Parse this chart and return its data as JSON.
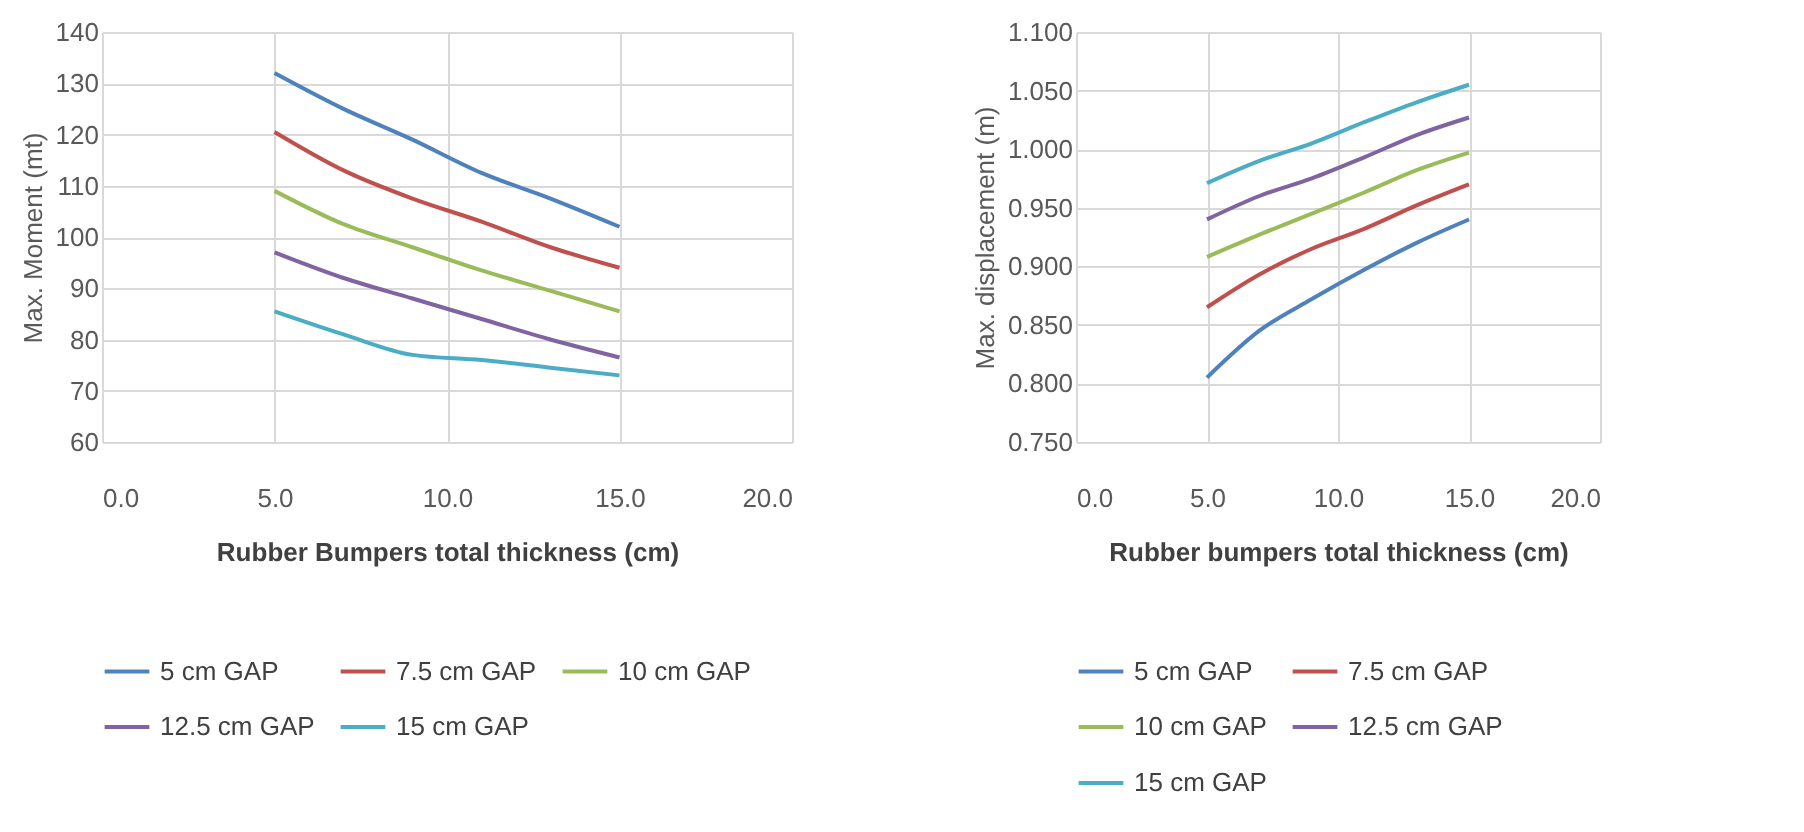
{
  "chart_data": [
    {
      "type": "line",
      "xlabel": "Rubber Bumpers total thickness (cm)",
      "ylabel": "Max. Moment (mt)",
      "x": [
        5,
        7,
        9,
        11,
        13,
        15
      ],
      "series": [
        {
          "name": "5 cm GAP",
          "color": "#4f81bd",
          "values": [
            132,
            125,
            119,
            112.5,
            107.5,
            102
          ]
        },
        {
          "name": "7.5 cm GAP",
          "color": "#c0504d",
          "values": [
            120.5,
            113,
            107.5,
            103,
            98,
            94
          ]
        },
        {
          "name": "10 cm GAP",
          "color": "#9bbb59",
          "values": [
            109,
            102.5,
            98,
            93.5,
            89.5,
            85.5
          ]
        },
        {
          "name": "12.5 cm GAP",
          "color": "#8064a2",
          "values": [
            97,
            92,
            88,
            84,
            80,
            76.5
          ]
        },
        {
          "name": "15 cm GAP",
          "color": "#4bacc6",
          "values": [
            85.5,
            81,
            77,
            76,
            74.5,
            73
          ]
        }
      ],
      "xlim": [
        0,
        20
      ],
      "xticks": [
        {
          "value": 0,
          "label": "0.0"
        },
        {
          "value": 5,
          "label": "5.0"
        },
        {
          "value": 10,
          "label": "10.0"
        },
        {
          "value": 15,
          "label": "15.0"
        },
        {
          "value": 20,
          "label": "20.0"
        }
      ],
      "ylim": [
        60,
        140
      ],
      "yticks": [
        60,
        70,
        80,
        90,
        100,
        110,
        120,
        130,
        140
      ],
      "grid": true,
      "legend": "bottom",
      "marker": "none",
      "line_style": "solid"
    },
    {
      "type": "line",
      "xlabel": "Rubber bumpers total thickness (cm)",
      "ylabel": "Max. displacement (m)",
      "x": [
        5,
        7,
        9,
        11,
        13,
        15
      ],
      "series": [
        {
          "name": "5 cm GAP",
          "color": "#4f81bd",
          "values": [
            0.805,
            0.845,
            0.872,
            0.897,
            0.92,
            0.94
          ]
        },
        {
          "name": "7.5 cm GAP",
          "color": "#c0504d",
          "values": [
            0.865,
            0.893,
            0.915,
            0.932,
            0.952,
            0.97
          ]
        },
        {
          "name": "10 cm GAP",
          "color": "#9bbb59",
          "values": [
            0.908,
            0.927,
            0.945,
            0.963,
            0.982,
            0.997
          ]
        },
        {
          "name": "12.5 cm GAP",
          "color": "#8064a2",
          "values": [
            0.94,
            0.96,
            0.975,
            0.993,
            1.012,
            1.027
          ]
        },
        {
          "name": "15 cm GAP",
          "color": "#4bacc6",
          "values": [
            0.971,
            0.99,
            1.005,
            1.023,
            1.04,
            1.055
          ]
        }
      ],
      "xlim": [
        0,
        20
      ],
      "xticks": [
        {
          "value": 0,
          "label": "0.0"
        },
        {
          "value": 5,
          "label": "5.0"
        },
        {
          "value": 10,
          "label": "10.0"
        },
        {
          "value": 15,
          "label": "15.0"
        },
        {
          "value": 20,
          "label": "20.0"
        }
      ],
      "ylim": [
        0.75,
        1.1
      ],
      "yticks": [
        {
          "value": 0.75,
          "label": "0.750"
        },
        {
          "value": 0.8,
          "label": "0.800"
        },
        {
          "value": 0.85,
          "label": "0.850"
        },
        {
          "value": 0.9,
          "label": "0.900"
        },
        {
          "value": 0.95,
          "label": "0.950"
        },
        {
          "value": 1.0,
          "label": "1.000"
        },
        {
          "value": 1.05,
          "label": "1.050"
        },
        {
          "value": 1.1,
          "label": "1.100"
        }
      ],
      "grid": true,
      "legend": "bottom",
      "marker": "none",
      "line_style": "solid"
    }
  ]
}
